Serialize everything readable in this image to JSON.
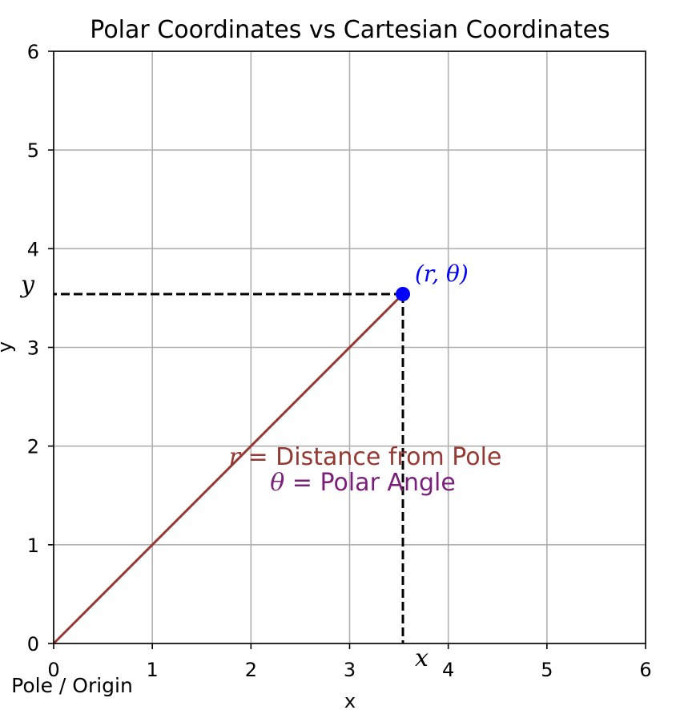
{
  "chart_data": {
    "type": "line",
    "title": "Polar Coordinates vs Cartesian Coordinates",
    "xlabel": "x",
    "ylabel": "y",
    "xlim": [
      0,
      6
    ],
    "ylim": [
      0,
      6
    ],
    "x_ticks": [
      "0",
      "1",
      "2",
      "3",
      "4",
      "5",
      "6"
    ],
    "y_ticks": [
      "0",
      "1",
      "2",
      "3",
      "4",
      "5",
      "6"
    ],
    "grid": true,
    "series": [
      {
        "x": [
          0,
          3.54
        ],
        "y": [
          0,
          3.54
        ]
      }
    ],
    "point": {
      "x": 3.54,
      "y": 3.54,
      "label": "(r, θ)"
    },
    "projection_labels": {
      "x": "x",
      "y": "y"
    },
    "annotations": {
      "pole": "Pole / Origin",
      "r_symbol": "r",
      "r_rest": "= Distance from Pole",
      "theta_symbol": "θ",
      "theta_rest": "= Polar Angle"
    },
    "colors": {
      "radius_line": "#943a32",
      "point": "#0000ff",
      "theta_text": "#7a1f7a",
      "grid": "#b0b0b0",
      "projection": "#000000"
    }
  }
}
